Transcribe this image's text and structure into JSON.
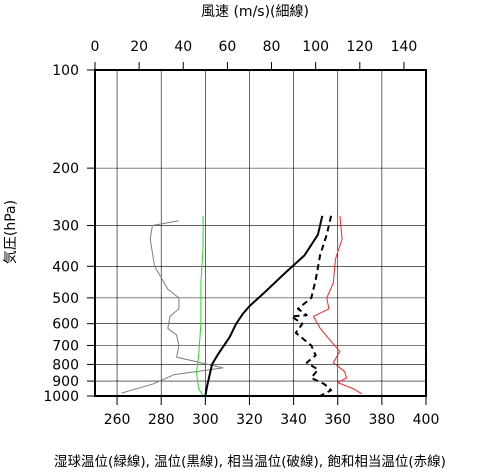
{
  "chart_data": {
    "type": "line",
    "title": "",
    "top_axis": {
      "label": "風速 (m/s)(細線)",
      "range": [
        0,
        150
      ],
      "ticks": [
        "0",
        "20",
        "40",
        "60",
        "80",
        "100",
        "120",
        "140"
      ],
      "tick_values": [
        0,
        20,
        40,
        60,
        80,
        100,
        120,
        140
      ]
    },
    "bottom_axis": {
      "label": "湿球温位(緑線), 温位(黒線), 相当温位(破線), 飽和相当温位(赤線)",
      "range": [
        250,
        400
      ],
      "ticks": [
        "260",
        "280",
        "300",
        "320",
        "340",
        "360",
        "380",
        "400"
      ],
      "tick_values": [
        260,
        280,
        300,
        320,
        340,
        360,
        380,
        400
      ]
    },
    "y_axis": {
      "label": "気圧(hPa)",
      "scale": "log",
      "range": [
        100,
        1000
      ],
      "ticks": [
        "100",
        "200",
        "300",
        "400",
        "500",
        "600",
        "700",
        "800",
        "900",
        "1000"
      ],
      "tick_values": [
        100,
        200,
        300,
        400,
        500,
        600,
        700,
        800,
        900,
        1000
      ]
    },
    "grid": true,
    "series": [
      {
        "color": "#7c7c7c",
        "axis": "top",
        "points": [
          [
            38,
            290
          ],
          [
            26,
            300
          ],
          [
            25,
            330
          ],
          [
            27,
            400
          ],
          [
            33,
            470
          ],
          [
            38,
            500
          ],
          [
            38,
            540
          ],
          [
            34,
            570
          ],
          [
            33,
            620
          ],
          [
            37,
            650
          ],
          [
            38,
            700
          ],
          [
            37,
            760
          ],
          [
            58,
            820
          ],
          [
            36,
            860
          ],
          [
            26,
            920
          ],
          [
            12,
            980
          ]
        ]
      },
      {
        "color": "#22dd22",
        "axis": "bottom",
        "points": [
          [
            299,
            280
          ],
          [
            299,
            350
          ],
          [
            298,
            450
          ],
          [
            298,
            600
          ],
          [
            297,
            750
          ],
          [
            296,
            850
          ],
          [
            297,
            950
          ],
          [
            299,
            1000
          ]
        ]
      },
      {
        "color": "#000000",
        "axis": "bottom",
        "points": [
          [
            353,
            280
          ],
          [
            351,
            320
          ],
          [
            345,
            370
          ],
          [
            336,
            420
          ],
          [
            327,
            480
          ],
          [
            320,
            530
          ],
          [
            317,
            560
          ],
          [
            314,
            600
          ],
          [
            311,
            660
          ],
          [
            306,
            740
          ],
          [
            303,
            800
          ],
          [
            302,
            860
          ],
          [
            301,
            920
          ],
          [
            300,
            1000
          ]
        ]
      },
      {
        "color": "#000000",
        "dashed": true,
        "axis": "bottom",
        "points": [
          [
            357,
            280
          ],
          [
            355,
            320
          ],
          [
            352,
            370
          ],
          [
            350,
            440
          ],
          [
            348,
            500
          ],
          [
            342,
            540
          ],
          [
            346,
            565
          ],
          [
            339,
            570
          ],
          [
            344,
            600
          ],
          [
            341,
            640
          ],
          [
            348,
            700
          ],
          [
            350,
            750
          ],
          [
            346,
            790
          ],
          [
            351,
            830
          ],
          [
            348,
            880
          ],
          [
            354,
            920
          ],
          [
            357,
            960
          ],
          [
            352,
            1000
          ]
        ]
      },
      {
        "color": "#ff2020",
        "axis": "bottom",
        "points": [
          [
            361,
            280
          ],
          [
            362,
            330
          ],
          [
            359,
            380
          ],
          [
            358,
            450
          ],
          [
            355,
            500
          ],
          [
            356,
            540
          ],
          [
            349,
            570
          ],
          [
            352,
            620
          ],
          [
            357,
            680
          ],
          [
            361,
            730
          ],
          [
            358,
            790
          ],
          [
            363,
            840
          ],
          [
            364,
            880
          ],
          [
            360,
            910
          ],
          [
            367,
            950
          ],
          [
            371,
            985
          ]
        ]
      }
    ]
  }
}
